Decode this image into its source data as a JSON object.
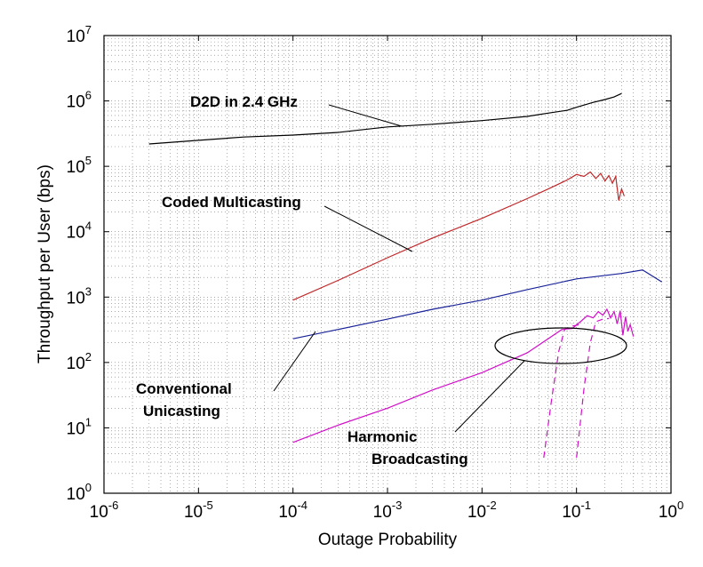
{
  "chart_data": {
    "type": "line",
    "title": "",
    "xlabel": "Outage Probability",
    "ylabel": "Throughput per User (bps)",
    "xscale": "log",
    "yscale": "log",
    "xlim": [
      1e-06,
      1
    ],
    "ylim": [
      1,
      10000000.0
    ],
    "grid": true,
    "x_ticks": [
      {
        "base": "10",
        "exp": "-6"
      },
      {
        "base": "10",
        "exp": "-5"
      },
      {
        "base": "10",
        "exp": "-4"
      },
      {
        "base": "10",
        "exp": "-3"
      },
      {
        "base": "10",
        "exp": "-2"
      },
      {
        "base": "10",
        "exp": "-1"
      },
      {
        "base": "10",
        "exp": "0"
      }
    ],
    "y_ticks": [
      {
        "base": "10",
        "exp": "0"
      },
      {
        "base": "10",
        "exp": "1"
      },
      {
        "base": "10",
        "exp": "2"
      },
      {
        "base": "10",
        "exp": "3"
      },
      {
        "base": "10",
        "exp": "4"
      },
      {
        "base": "10",
        "exp": "5"
      },
      {
        "base": "10",
        "exp": "6"
      },
      {
        "base": "10",
        "exp": "7"
      }
    ],
    "series": [
      {
        "color": "#000000",
        "points": [
          [
            3e-06,
            220000
          ],
          [
            1e-05,
            250000
          ],
          [
            3e-05,
            280000
          ],
          [
            0.0001,
            300000
          ],
          [
            0.0003,
            330000
          ],
          [
            0.001,
            400000
          ],
          [
            0.003,
            440000
          ],
          [
            0.01,
            500000
          ],
          [
            0.03,
            580000
          ],
          [
            0.05,
            650000
          ],
          [
            0.08,
            720000
          ],
          [
            0.1,
            800000
          ],
          [
            0.15,
            950000
          ],
          [
            0.2,
            1050000
          ],
          [
            0.25,
            1150000
          ],
          [
            0.3,
            1300000
          ]
        ]
      },
      {
        "color": "#c0282a",
        "points": [
          [
            0.0001,
            900
          ],
          [
            0.0003,
            1800
          ],
          [
            0.001,
            4000
          ],
          [
            0.003,
            8000
          ],
          [
            0.01,
            16000
          ],
          [
            0.03,
            32000
          ],
          [
            0.05,
            45000
          ],
          [
            0.08,
            62000
          ],
          [
            0.1,
            75000
          ],
          [
            0.12,
            70000
          ],
          [
            0.14,
            82000
          ],
          [
            0.16,
            65000
          ],
          [
            0.18,
            78000
          ],
          [
            0.2,
            60000
          ],
          [
            0.22,
            72000
          ],
          [
            0.24,
            55000
          ],
          [
            0.26,
            70000
          ],
          [
            0.28,
            30000
          ],
          [
            0.3,
            45000
          ],
          [
            0.32,
            35000
          ]
        ]
      },
      {
        "color": "#1a2399",
        "points": [
          [
            0.0001,
            230
          ],
          [
            0.0003,
            320
          ],
          [
            0.001,
            460
          ],
          [
            0.003,
            650
          ],
          [
            0.01,
            900
          ],
          [
            0.03,
            1300
          ],
          [
            0.1,
            1900
          ],
          [
            0.3,
            2300
          ],
          [
            0.5,
            2600
          ],
          [
            0.8,
            1700
          ]
        ]
      },
      {
        "color": "#d010c8",
        "points": [
          [
            0.0001,
            6
          ],
          [
            0.0003,
            11
          ],
          [
            0.001,
            20
          ],
          [
            0.003,
            38
          ],
          [
            0.01,
            70
          ],
          [
            0.03,
            140
          ],
          [
            0.05,
            230
          ],
          [
            0.07,
            320
          ],
          [
            0.09,
            330
          ],
          [
            0.11,
            420
          ],
          [
            0.13,
            520
          ],
          [
            0.15,
            480
          ],
          [
            0.17,
            600
          ],
          [
            0.19,
            530
          ],
          [
            0.21,
            650
          ],
          [
            0.23,
            480
          ],
          [
            0.25,
            600
          ],
          [
            0.27,
            390
          ],
          [
            0.29,
            620
          ],
          [
            0.31,
            260
          ],
          [
            0.33,
            500
          ],
          [
            0.35,
            300
          ],
          [
            0.37,
            380
          ],
          [
            0.4,
            250
          ]
        ]
      },
      {
        "color": "#d010c8",
        "dashed": true,
        "points": [
          [
            0.045,
            3.5
          ],
          [
            0.055,
            30
          ],
          [
            0.065,
            150
          ],
          [
            0.075,
            320
          ],
          [
            0.09,
            360
          ],
          [
            0.11,
            380
          ]
        ]
      },
      {
        "color": "#d010c8",
        "dashed": true,
        "points": [
          [
            0.1,
            3.5
          ],
          [
            0.12,
            40
          ],
          [
            0.14,
            200
          ],
          [
            0.16,
            420
          ],
          [
            0.19,
            460
          ],
          [
            0.22,
            470
          ]
        ]
      }
    ],
    "annotations": [
      {
        "text": "D2D in 2.4 GHz"
      },
      {
        "text": "Coded Multicasting"
      },
      {
        "text": "Conventional"
      },
      {
        "text": "Unicasting"
      },
      {
        "text": "Harmonic"
      },
      {
        "text": "Broadcasting"
      }
    ]
  }
}
